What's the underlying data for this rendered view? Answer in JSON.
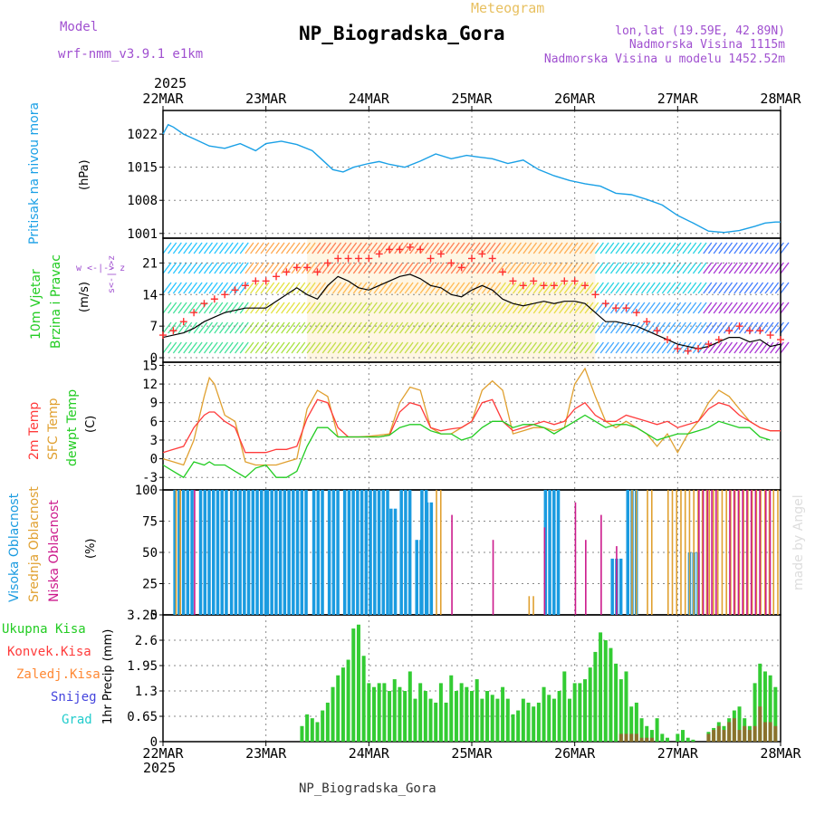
{
  "header": {
    "title": "NP_Biogradska_Gora",
    "product": "Meteogram",
    "model_label": "Model",
    "model_name": "wrf-nmm_v3.9.1 e1km",
    "lonlat": "lon,lat (19.59E, 42.89N)",
    "altitude": "Nadmorska Visina 1115m",
    "model_altitude": "Nadmorska Visina u modelu 1452.52m",
    "year_top": "2025",
    "year_bottom": "2025",
    "footer": "NP_Biogradska_Gora",
    "watermark": "made by Angel"
  },
  "colors": {
    "pressure": "#1aa0e6",
    "wind_speed": "#000000",
    "gust_marker": "#ff3030",
    "t2m": "#ff3b3b",
    "tsfc": "#e0a030",
    "dewpoint": "#22cc22",
    "cloud_high": "#1a9be0",
    "cloud_mid": "#e0a030",
    "cloud_low": "#cc1a8c",
    "precip_total": "#33cc33",
    "precip_conv": "#ff3b3b",
    "precip_snow": "#4444dd",
    "precip_grad": "#22cccc",
    "precip_frz": "#ff8833",
    "grid": "#888888"
  },
  "x_axis": {
    "ticks": [
      "22MAR",
      "23MAR",
      "24MAR",
      "25MAR",
      "26MAR",
      "27MAR",
      "28MAR"
    ]
  },
  "chart_data": [
    {
      "type": "line",
      "name": "pressure",
      "ylabel": "Pritisak na nivou mora",
      "unit": "(hPa)",
      "ylim": [
        1000,
        1027
      ],
      "yticks": [
        "1022",
        "1015",
        "1008",
        "1001"
      ],
      "ytick_values": [
        1022,
        1015,
        1008,
        1001
      ],
      "grid": true,
      "x_days": [
        0,
        0.05,
        0.1,
        0.2,
        0.3,
        0.45,
        0.6,
        0.75,
        0.9,
        1.0,
        1.15,
        1.3,
        1.45,
        1.55,
        1.65,
        1.75,
        1.85,
        2.0,
        2.1,
        2.2,
        2.35,
        2.5,
        2.65,
        2.8,
        2.95,
        3.05,
        3.2,
        3.35,
        3.5,
        3.65,
        3.8,
        3.95,
        4.1,
        4.25,
        4.4,
        4.55,
        4.7,
        4.85,
        5.0,
        5.15,
        5.3,
        5.45,
        5.6,
        5.75,
        5.85,
        5.95,
        6.0
      ],
      "series": [
        {
          "name": "Pritisak",
          "values": [
            1022,
            1024,
            1023.5,
            1022,
            1021,
            1019.5,
            1019,
            1020,
            1018.5,
            1020,
            1020.5,
            1019.8,
            1018.5,
            1016.5,
            1014.5,
            1014,
            1015,
            1015.8,
            1016.2,
            1015.6,
            1015,
            1016.3,
            1017.8,
            1016.8,
            1017.5,
            1017.2,
            1016.8,
            1015.8,
            1016.5,
            1014.5,
            1013.2,
            1012.2,
            1011.5,
            1011,
            1009.5,
            1009.2,
            1008.2,
            1007,
            1004.8,
            1003.2,
            1001.5,
            1001.2,
            1001.6,
            1002.5,
            1003.2,
            1003.4,
            1003.4
          ]
        }
      ]
    },
    {
      "type": "line",
      "name": "wind",
      "ylabel": "10m Vjetar Brzina i Pravac",
      "unit": "(m/s)",
      "ylim": [
        -1,
        26.5
      ],
      "yticks": [
        "21",
        "14",
        "7",
        "0"
      ],
      "ytick_values": [
        21,
        14,
        7,
        0
      ],
      "direction_legend": "w <-|-> z",
      "direction_legend_ns": "s<-|->z",
      "grid": true,
      "x_days": [
        0,
        0.1,
        0.2,
        0.3,
        0.4,
        0.5,
        0.6,
        0.7,
        0.8,
        0.9,
        1.0,
        1.1,
        1.2,
        1.3,
        1.4,
        1.5,
        1.6,
        1.7,
        1.8,
        1.9,
        2.0,
        2.1,
        2.2,
        2.3,
        2.4,
        2.5,
        2.6,
        2.7,
        2.8,
        2.9,
        3.0,
        3.1,
        3.2,
        3.3,
        3.4,
        3.5,
        3.6,
        3.7,
        3.8,
        3.9,
        4.0,
        4.1,
        4.2,
        4.3,
        4.4,
        4.5,
        4.6,
        4.7,
        4.8,
        4.9,
        5.0,
        5.1,
        5.2,
        5.3,
        5.4,
        5.5,
        5.6,
        5.7,
        5.8,
        5.9,
        6.0
      ],
      "series": [
        {
          "name": "10m",
          "values": [
            4.5,
            5,
            5.5,
            6.5,
            8,
            9,
            10,
            10.5,
            11,
            11,
            11,
            12.5,
            14,
            15.5,
            14,
            13,
            16,
            18,
            17,
            15.5,
            15,
            16,
            17,
            18,
            18.5,
            17.5,
            16,
            15.5,
            14,
            13.5,
            15,
            16,
            15,
            13,
            12,
            11.5,
            12,
            12.5,
            12,
            12.5,
            12.5,
            12,
            10,
            8,
            8,
            7.5,
            7,
            6,
            5,
            4,
            3,
            2.5,
            2,
            2.5,
            3.5,
            4.5,
            4.5,
            3.5,
            4,
            2.5,
            3
          ]
        },
        {
          "name": "Udari",
          "values": [
            5,
            6,
            8,
            10,
            12,
            13,
            14,
            15,
            16,
            17,
            17,
            18,
            19,
            20,
            20,
            19,
            21,
            22,
            22,
            22,
            22,
            23,
            24,
            24,
            24.5,
            24,
            22,
            23,
            21,
            20,
            22,
            23,
            22,
            19,
            17,
            16,
            17,
            16,
            16,
            17,
            17,
            16,
            14,
            12,
            11,
            11,
            10,
            8,
            6,
            4,
            2,
            1.5,
            2,
            3,
            4,
            6,
            7,
            6,
            6,
            5,
            4
          ]
        }
      ]
    },
    {
      "type": "line",
      "name": "temperature",
      "ylabel_lines": [
        "2m Temp",
        "SFC Temp",
        "dewpt Temp"
      ],
      "unit": "(C)",
      "ylim": [
        -5,
        15.5
      ],
      "yticks": [
        "15",
        "12",
        "9",
        "6",
        "3",
        "0",
        "-3"
      ],
      "ytick_values": [
        15,
        12,
        9,
        6,
        3,
        0,
        -3
      ],
      "grid": true,
      "x_days": [
        0,
        0.1,
        0.2,
        0.3,
        0.4,
        0.45,
        0.5,
        0.6,
        0.7,
        0.8,
        0.9,
        1.0,
        1.1,
        1.2,
        1.3,
        1.4,
        1.5,
        1.6,
        1.7,
        1.8,
        1.9,
        2.0,
        2.1,
        2.2,
        2.3,
        2.4,
        2.5,
        2.6,
        2.7,
        2.8,
        2.9,
        3.0,
        3.1,
        3.2,
        3.3,
        3.4,
        3.5,
        3.6,
        3.7,
        3.8,
        3.9,
        4.0,
        4.1,
        4.2,
        4.3,
        4.4,
        4.5,
        4.6,
        4.7,
        4.8,
        4.9,
        5.0,
        5.1,
        5.2,
        5.3,
        5.4,
        5.5,
        5.6,
        5.7,
        5.8,
        5.9,
        6.0
      ],
      "series": [
        {
          "name": "2m Temp",
          "values": [
            1,
            1.5,
            2,
            5,
            7,
            7.5,
            7.5,
            6,
            5,
            1,
            1,
            1,
            1.5,
            1.5,
            2,
            6.5,
            9.5,
            9,
            5,
            3.5,
            3.5,
            3.5,
            3.5,
            3.8,
            7.5,
            9,
            8.5,
            5,
            4.5,
            4.8,
            5,
            6,
            9,
            9.5,
            6,
            4.5,
            5,
            5.5,
            6,
            5.5,
            6,
            8,
            9,
            7,
            6,
            6,
            7,
            6.5,
            6,
            5.5,
            6,
            5,
            5.5,
            6,
            8,
            9,
            8.5,
            7,
            6,
            5,
            4.5,
            4.5
          ]
        },
        {
          "name": "SFC Temp",
          "values": [
            0,
            -0.5,
            -1,
            3,
            10,
            13,
            12,
            7,
            6,
            -0.5,
            -1,
            -1,
            -1,
            -0.5,
            0,
            8,
            11,
            10,
            3.5,
            3.5,
            3.5,
            3.6,
            3.8,
            4,
            9,
            11.5,
            11,
            5,
            4,
            4,
            5,
            6,
            11,
            12.5,
            11,
            4,
            4.5,
            5,
            5,
            4.5,
            5,
            12,
            14.5,
            10,
            6,
            5,
            6,
            5,
            4,
            2,
            4,
            1,
            4,
            6,
            9,
            11,
            10,
            8,
            6,
            5,
            4.5,
            4.5
          ]
        },
        {
          "name": "dewpt Temp",
          "values": [
            -1,
            -2,
            -3,
            -0.5,
            -1,
            -0.5,
            -1,
            -1,
            -2,
            -3,
            -1.5,
            -1,
            -3,
            -3,
            -2,
            2,
            5,
            5,
            3.5,
            3.5,
            3.5,
            3.5,
            3.5,
            3.8,
            5,
            5.5,
            5.5,
            4.5,
            4,
            4,
            3,
            3.5,
            5,
            6,
            6,
            5,
            5.5,
            5.5,
            5,
            4,
            5,
            6,
            7,
            6,
            5,
            5.5,
            5.5,
            5,
            4,
            3,
            3.5,
            4,
            4,
            4.5,
            5,
            6,
            5.5,
            5,
            5,
            3.5,
            3
          ]
        }
      ]
    },
    {
      "type": "bar",
      "name": "cloud",
      "ylabel_lines": [
        "Visoka Oblacnost",
        "Srednja Oblacnost",
        "Niska Oblacnost"
      ],
      "unit": "(%)",
      "ylim": [
        0,
        100
      ],
      "yticks": [
        "100",
        "75",
        "50",
        "25",
        "0"
      ],
      "ytick_values": [
        100,
        75,
        50,
        25,
        0
      ],
      "grid": true,
      "series": [
        {
          "name": "Visoka Oblacnost",
          "segments": [
            [
              0.1,
              0.3,
              100
            ],
            [
              0.35,
              0.6,
              100
            ],
            [
              0.65,
              1.0,
              100
            ],
            [
              1.0,
              1.4,
              100
            ],
            [
              1.45,
              1.55,
              100
            ],
            [
              1.6,
              1.7,
              100
            ],
            [
              1.75,
              2.2,
              100
            ],
            [
              2.2,
              2.25,
              85
            ],
            [
              2.3,
              2.4,
              100
            ],
            [
              2.45,
              2.5,
              60
            ],
            [
              2.5,
              2.55,
              100
            ],
            [
              2.55,
              2.6,
              90
            ],
            [
              3.7,
              3.85,
              100
            ],
            [
              4.35,
              4.45,
              45
            ],
            [
              4.5,
              4.6,
              100
            ],
            [
              5.1,
              5.2,
              50
            ]
          ]
        },
        {
          "name": "Srednja Oblacnost",
          "segments": [
            [
              0.12,
              0.18,
              100
            ],
            [
              2.65,
              2.7,
              100
            ],
            [
              3.55,
              3.6,
              15
            ],
            [
              4.55,
              4.6,
              100
            ],
            [
              4.7,
              4.75,
              100
            ],
            [
              4.9,
              5.3,
              100
            ],
            [
              5.3,
              6.0,
              100
            ]
          ]
        },
        {
          "name": "Niska Oblacnost",
          "segments": [
            [
              0.3,
              0.33,
              100
            ],
            [
              2.8,
              2.82,
              80
            ],
            [
              3.2,
              3.22,
              60
            ],
            [
              3.7,
              3.72,
              70
            ],
            [
              4.0,
              4.02,
              90
            ],
            [
              4.1,
              4.12,
              60
            ],
            [
              4.25,
              4.27,
              80
            ],
            [
              4.4,
              4.42,
              55
            ],
            [
              5.2,
              5.4,
              100
            ],
            [
              5.5,
              5.8,
              100
            ],
            [
              5.85,
              5.9,
              100
            ]
          ]
        }
      ]
    },
    {
      "type": "bar",
      "name": "precip",
      "ylabel_lines": [
        "Ukupna Kisa",
        "Konvek.Kisa",
        "Zaledj.Kisa",
        "Snijeg",
        "Grad"
      ],
      "unit": "1hr Precip (mm)",
      "ylim": [
        0,
        3.25
      ],
      "yticks": [
        "3.25",
        "2.6",
        "1.95",
        "1.3",
        "0.65",
        "0"
      ],
      "ytick_values": [
        3.25,
        2.6,
        1.95,
        1.3,
        0.65,
        0
      ],
      "grid": true,
      "x_days": [
        1.35,
        1.4,
        1.45,
        1.5,
        1.55,
        1.6,
        1.65,
        1.7,
        1.75,
        1.8,
        1.85,
        1.9,
        1.95,
        2.0,
        2.05,
        2.1,
        2.15,
        2.2,
        2.25,
        2.3,
        2.35,
        2.4,
        2.45,
        2.5,
        2.55,
        2.6,
        2.65,
        2.7,
        2.75,
        2.8,
        2.85,
        2.9,
        2.95,
        3.0,
        3.05,
        3.1,
        3.15,
        3.2,
        3.25,
        3.3,
        3.35,
        3.4,
        3.45,
        3.5,
        3.55,
        3.6,
        3.65,
        3.7,
        3.75,
        3.8,
        3.85,
        3.9,
        3.95,
        4.0,
        4.05,
        4.1,
        4.15,
        4.2,
        4.25,
        4.3,
        4.35,
        4.4,
        4.45,
        4.5,
        4.55,
        4.6,
        4.65,
        4.7,
        4.75,
        4.8,
        4.85,
        4.9,
        5.0,
        5.05,
        5.1,
        5.15,
        5.3,
        5.35,
        5.4,
        5.45,
        5.5,
        5.55,
        5.6,
        5.65,
        5.7,
        5.75,
        5.8,
        5.85,
        5.9,
        5.95
      ],
      "series": [
        {
          "name": "Ukupna Kisa",
          "values": [
            0.4,
            0.7,
            0.6,
            0.5,
            0.8,
            1.0,
            1.4,
            1.7,
            1.9,
            2.1,
            2.9,
            3.0,
            2.2,
            1.5,
            1.4,
            1.5,
            1.5,
            1.3,
            1.6,
            1.4,
            1.3,
            1.8,
            1.1,
            1.5,
            1.3,
            1.1,
            1.0,
            1.5,
            1.0,
            1.7,
            1.3,
            1.5,
            1.4,
            1.3,
            1.6,
            1.1,
            1.3,
            1.2,
            1.1,
            1.4,
            1.1,
            0.7,
            0.8,
            1.1,
            1.0,
            0.9,
            1.0,
            1.4,
            1.2,
            1.1,
            1.3,
            1.8,
            1.1,
            1.5,
            1.5,
            1.6,
            1.9,
            2.3,
            2.8,
            2.6,
            2.4,
            2.0,
            1.6,
            1.8,
            0.9,
            1.0,
            0.6,
            0.4,
            0.3,
            0.6,
            0.2,
            0.1,
            0.2,
            0.3,
            0.1,
            0.05,
            0.25,
            0.35,
            0.5,
            0.4,
            0.6,
            0.8,
            0.9,
            0.6,
            0.4,
            1.5,
            2.0,
            1.8,
            1.7,
            1.4
          ]
        },
        {
          "name": "Konvek.Kisa",
          "values": [
            0,
            0,
            0,
            0,
            0,
            0,
            0,
            0,
            0,
            0,
            0,
            0,
            0,
            0,
            0,
            0,
            0,
            0,
            0,
            0,
            0,
            0,
            0,
            0,
            0,
            0,
            0,
            0,
            0,
            0,
            0,
            0,
            0,
            0,
            0,
            0,
            0,
            0,
            0,
            0,
            0,
            0,
            0,
            0,
            0,
            0,
            0,
            0,
            0,
            0,
            0,
            0,
            0,
            0,
            0,
            0,
            0,
            0,
            0,
            0,
            0,
            0,
            0.2,
            0.2,
            0.2,
            0.2,
            0.1,
            0.1,
            0.1,
            0,
            0,
            0,
            0,
            0,
            0,
            0,
            0.2,
            0.3,
            0.4,
            0.3,
            0.5,
            0.6,
            0.3,
            0.4,
            0.3,
            0.4,
            0.9,
            0.5,
            0.5,
            0.4
          ]
        }
      ]
    }
  ]
}
